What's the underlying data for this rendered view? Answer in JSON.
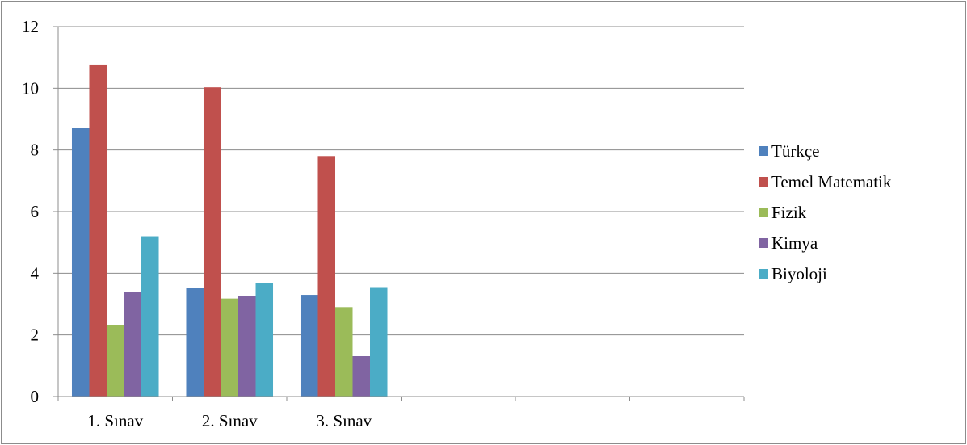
{
  "chart_data": {
    "type": "bar",
    "categories": [
      "1. Sınav",
      "2. Sınav",
      "3. Sınav",
      "",
      "",
      ""
    ],
    "series": [
      {
        "name": "Türkçe",
        "color": "#4f81bd",
        "values": [
          8.72,
          3.52,
          3.3,
          null,
          null,
          null
        ]
      },
      {
        "name": "Temel Matematik",
        "color": "#c0504d",
        "values": [
          10.77,
          10.03,
          7.8,
          null,
          null,
          null
        ]
      },
      {
        "name": "Fizik",
        "color": "#9bbb59",
        "values": [
          2.33,
          3.18,
          2.9,
          null,
          null,
          null
        ]
      },
      {
        "name": "Kimya",
        "color": "#8064a2",
        "values": [
          3.39,
          3.26,
          1.31,
          null,
          null,
          null
        ]
      },
      {
        "name": "Biyoloji",
        "color": "#4bacc6",
        "values": [
          5.2,
          3.69,
          3.55,
          null,
          null,
          null
        ]
      }
    ],
    "y_ticks": [
      "0",
      "2",
      "4",
      "6",
      "8",
      "10",
      "12"
    ],
    "ylim": [
      0,
      12
    ],
    "grid": true,
    "legend_position": "right"
  }
}
